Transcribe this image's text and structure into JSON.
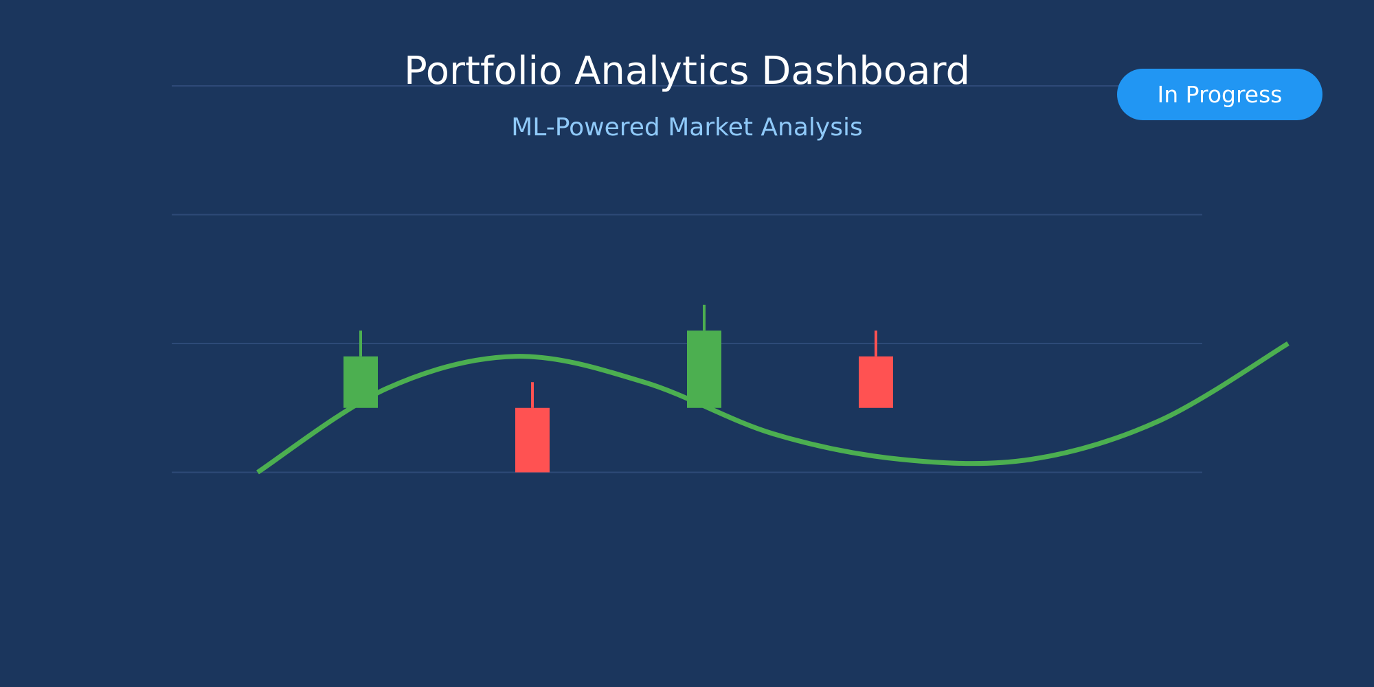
{
  "header": {
    "title": "Portfolio Analytics Dashboard",
    "subtitle": "ML-Powered Market Analysis",
    "status": "In Progress"
  },
  "colors": {
    "background": "#1b365d",
    "grid": "#2e4a78",
    "up": "#4caf50",
    "down": "#ff5252",
    "trend": "#4caf50",
    "badge": "#2196f3",
    "subtitle": "#90caf9"
  },
  "chart_data": {
    "type": "candlestick",
    "title": "",
    "xlabel": "",
    "ylabel": "",
    "ylim": [
      0,
      4
    ],
    "grid": true,
    "legend": "none",
    "candles": [
      {
        "open": 1.5,
        "close": 1.9,
        "high": 2.1,
        "low": 1.5,
        "direction": "up"
      },
      {
        "open": 1.5,
        "close": 1.0,
        "high": 1.7,
        "low": 1.0,
        "direction": "down"
      },
      {
        "open": 1.5,
        "close": 2.1,
        "high": 2.3,
        "low": 1.5,
        "direction": "up"
      },
      {
        "open": 1.9,
        "close": 1.5,
        "high": 2.1,
        "low": 1.5,
        "direction": "down"
      }
    ],
    "trend_line": {
      "x": [
        0.0,
        1.15,
        2.3,
        3.45,
        4.6,
        5.75,
        6.9,
        8.05,
        9.2
      ],
      "y": [
        1.0,
        1.65,
        1.9,
        1.7,
        1.3,
        1.1,
        1.1,
        1.4,
        2.0
      ]
    }
  }
}
